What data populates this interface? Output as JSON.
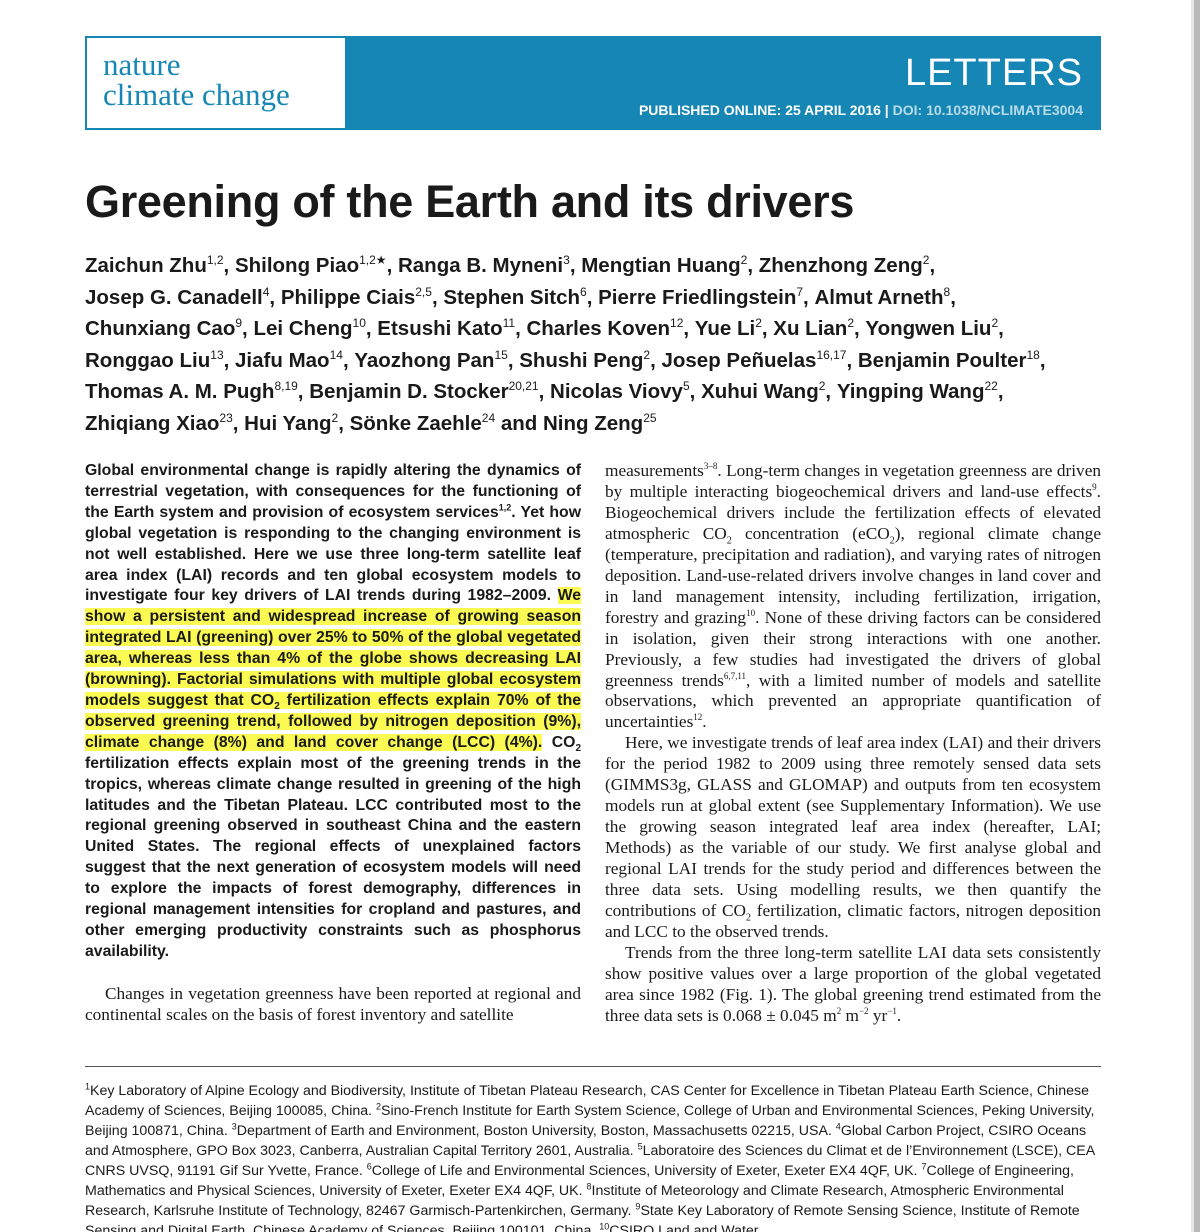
{
  "header": {
    "journal_line1": "nature",
    "journal_line2": "climate change",
    "section": "LETTERS",
    "published": "PUBLISHED ONLINE: 25 APRIL 2016",
    "separator": " | ",
    "doi": "DOI: 10.1038/NCLIMATE3004",
    "brand_color": "#1687b5"
  },
  "title": "Greening of the Earth and its drivers",
  "authors": [
    {
      "name": "Zaichun Zhu",
      "aff": "1,2",
      "sep": ", "
    },
    {
      "name": "Shilong Piao",
      "aff": "1,2★",
      "sep": ", "
    },
    {
      "name": "Ranga B. Myneni",
      "aff": "3",
      "sep": ", "
    },
    {
      "name": "Mengtian Huang",
      "aff": "2",
      "sep": ", "
    },
    {
      "name": "Zhenzhong Zeng",
      "aff": "2",
      "sep": ", "
    },
    {
      "name": "Josep G. Canadell",
      "aff": "4",
      "sep": ", "
    },
    {
      "name": "Philippe Ciais",
      "aff": "2,5",
      "sep": ", "
    },
    {
      "name": "Stephen Sitch",
      "aff": "6",
      "sep": ", "
    },
    {
      "name": "Pierre Friedlingstein",
      "aff": "7",
      "sep": ", "
    },
    {
      "name": "Almut Arneth",
      "aff": "8",
      "sep": ", "
    },
    {
      "name": "Chunxiang Cao",
      "aff": "9",
      "sep": ", "
    },
    {
      "name": "Lei Cheng",
      "aff": "10",
      "sep": ", "
    },
    {
      "name": "Etsushi Kato",
      "aff": "11",
      "sep": ", "
    },
    {
      "name": "Charles Koven",
      "aff": "12",
      "sep": ", "
    },
    {
      "name": "Yue Li",
      "aff": "2",
      "sep": ", "
    },
    {
      "name": "Xu Lian",
      "aff": "2",
      "sep": ", "
    },
    {
      "name": "Yongwen Liu",
      "aff": "2",
      "sep": ", "
    },
    {
      "name": "Ronggao Liu",
      "aff": "13",
      "sep": ", "
    },
    {
      "name": "Jiafu Mao",
      "aff": "14",
      "sep": ", "
    },
    {
      "name": "Yaozhong Pan",
      "aff": "15",
      "sep": ", "
    },
    {
      "name": "Shushi Peng",
      "aff": "2",
      "sep": ", "
    },
    {
      "name": "Josep Peñuelas",
      "aff": "16,17",
      "sep": ", "
    },
    {
      "name": "Benjamin Poulter",
      "aff": "18",
      "sep": ", "
    },
    {
      "name": "Thomas A. M. Pugh",
      "aff": "8,19",
      "sep": ", "
    },
    {
      "name": "Benjamin D. Stocker",
      "aff": "20,21",
      "sep": ", "
    },
    {
      "name": "Nicolas Viovy",
      "aff": "5",
      "sep": ", "
    },
    {
      "name": "Xuhui Wang",
      "aff": "2",
      "sep": ", "
    },
    {
      "name": "Yingping Wang",
      "aff": "22",
      "sep": ", "
    },
    {
      "name": "Zhiqiang Xiao",
      "aff": "23",
      "sep": ", "
    },
    {
      "name": "Hui Yang",
      "aff": "2",
      "sep": ", "
    },
    {
      "name": "Sönke Zaehle",
      "aff": "24",
      "sep": " and "
    },
    {
      "name": "Ning Zeng",
      "aff": "25",
      "sep": ""
    }
  ],
  "abstract": {
    "a1": "Global environmental change is rapidly altering the dynamics of terrestrial vegetation, with consequences for the functioning of the Earth system and provision of ecosystem services",
    "a1_sup": "1,2",
    "a2": ". Yet how global vegetation is responding to the changing environment is not well established. Here we use three long-term satellite leaf area index (LAI) records and ten global ecosystem models to investigate four key drivers of LAI trends during 1982–2009. ",
    "h1": "We show a persistent and widespread increase of growing season integrated LAI (greening) over 25% to 50% of the global vegetated area, whereas less than 4% of the globe shows decreasing LAI (browning). Factorial simulations with multiple global ecosystem models suggest that CO",
    "h1_sub": "2",
    "h2": " fertilization effects explain 70% of the observed greening trend, followed by nitrogen deposition (9%), climate change (8%) and land cover change (LCC) (4%).",
    "a3_pre": " CO",
    "a3_sub": "2",
    "a3": " fertilization effects explain most of the greening trends in the tropics, whereas climate change resulted in greening of the high latitudes and the Tibetan Plateau. LCC contributed most to the regional greening observed in southeast China and the eastern United States. The regional effects of unexplained factors suggest that the next generation of ecosystem models will need to explore the impacts of forest demography, differences in regional management intensities for cropland and pastures, and other emerging productivity constraints such as phosphorus availability.",
    "highlight_color": "#fafa52"
  },
  "body_left": {
    "p1": "Changes in vegetation greenness have been reported at regional and continental scales on the basis of forest inventory and satellite"
  },
  "body_right": {
    "p1_a": "measurements",
    "p1_s1": "3–8",
    "p1_b": ". Long-term changes in vegetation greenness are driven by multiple interacting biogeochemical drivers and land-use effects",
    "p1_s2": "9",
    "p1_c": ". Biogeochemical drivers include the fertilization effects of elevated atmospheric CO",
    "p1_sub1": "2",
    "p1_d": " concentration (eCO",
    "p1_sub2": "2",
    "p1_e": "), regional climate change (temperature, precipitation and radiation), and varying rates of nitrogen deposition. Land-use-related drivers involve changes in land cover and in land management intensity, including fertilization, irrigation, forestry and grazing",
    "p1_s3": "10",
    "p1_f": ". None of these driving factors can be considered in isolation, given their strong interactions with one another. Previously, a few studies had investigated the drivers of global greenness trends",
    "p1_s4": "6,7,11",
    "p1_g": ", with a limited number of models and satellite observations, which prevented an appropriate quantification of uncertainties",
    "p1_s5": "12",
    "p1_h": ".",
    "p2_a": "Here, we investigate trends of leaf area index (LAI) and their drivers for the period 1982 to 2009 using three remotely sensed data sets (GIMMS3g, GLASS and GLOMAP) and outputs from ten ecosystem models run at global extent (see Supplementary Information). We use the growing season integrated leaf area index (hereafter, LAI; Methods) as the variable of our study. We first analyse global and regional LAI trends for the study period and differences between the three data sets. Using modelling results, we then quantify the contributions of CO",
    "p2_sub": "2",
    "p2_b": " fertilization, climatic factors, nitrogen deposition and LCC to the observed trends.",
    "p3_a": "Trends from the three long-term satellite LAI data sets consistently show positive values over a large proportion of the global vegetated area since 1982 (Fig. 1). The global greening trend estimated from the three data sets is 0.068 ± 0.045 m",
    "p3_s1": "2",
    "p3_b": " m",
    "p3_s2": "−2",
    "p3_c": " yr",
    "p3_s3": "−1",
    "p3_d": "."
  },
  "footnotes": [
    {
      "n": "1",
      "t": "Key Laboratory of Alpine Ecology and Biodiversity, Institute of Tibetan Plateau Research, CAS Center for Excellence in Tibetan Plateau Earth Science, Chinese Academy of Sciences, Beijing 100085, China. "
    },
    {
      "n": "2",
      "t": "Sino-French Institute for Earth System Science, College of Urban and Environmental Sciences, Peking University, Beijing 100871, China. "
    },
    {
      "n": "3",
      "t": "Department of Earth and Environment, Boston University, Boston, Massachusetts 02215, USA. "
    },
    {
      "n": "4",
      "t": "Global Carbon Project, CSIRO Oceans and Atmosphere, GPO Box 3023, Canberra, Australian Capital Territory 2601, Australia. "
    },
    {
      "n": "5",
      "t": "Laboratoire des Sciences du Climat et de l’Environnement (LSCE), CEA CNRS UVSQ, 91191 Gif Sur Yvette, France. "
    },
    {
      "n": "6",
      "t": "College of Life and Environmental Sciences, University of Exeter, Exeter EX4 4QF, UK. "
    },
    {
      "n": "7",
      "t": "College of Engineering, Mathematics and Physical Sciences, University of Exeter, Exeter EX4 4QF, UK. "
    },
    {
      "n": "8",
      "t": "Institute of Meteorology and Climate Research, Atmospheric Environmental Research, Karlsruhe Institute of Technology, 82467 Garmisch-Partenkirchen, Germany. "
    },
    {
      "n": "9",
      "t": "State Key Laboratory of Remote Sensing Science, Institute of Remote Sensing and Digital Earth, Chinese Academy of Sciences, Beijing 100101, China. "
    },
    {
      "n": "10",
      "t": "CSIRO Land and Water"
    }
  ]
}
